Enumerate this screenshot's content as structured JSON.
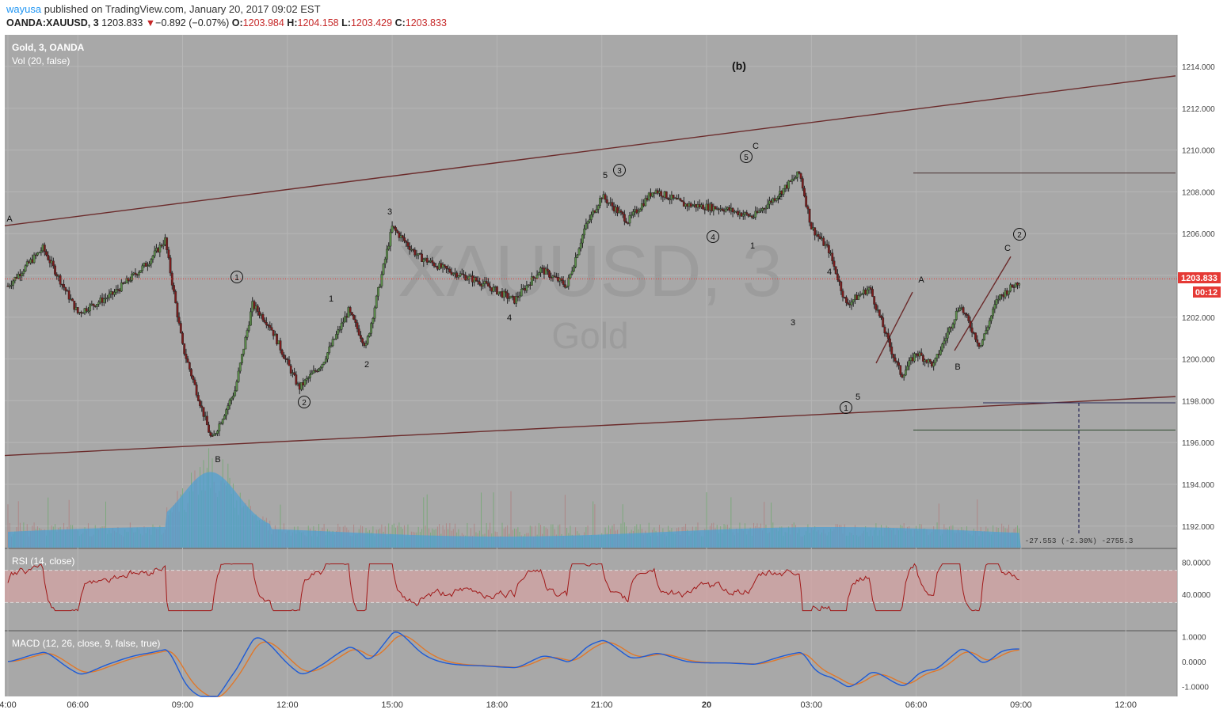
{
  "header": {
    "author": "wayusa",
    "published_text": "published on TradingView.com, January 20, 2017 09:02 EST",
    "symbol": "OANDA:XAUUSD, 3",
    "last": "1203.833",
    "change_arrow": "▼",
    "change": "−0.892 (−0.07%)",
    "open_label": "O:",
    "open": "1203.984",
    "high_label": "H:",
    "high": "1204.158",
    "low_label": "L:",
    "low": "1203.429",
    "close_label": "C:",
    "close": "1203.833"
  },
  "panes": {
    "price_title": "Gold, 3, OANDA",
    "vol_title": "Vol (20, false)",
    "rsi_title": "RSI (14, close)",
    "macd_title": "MACD (12, 26, close, 9, false, true)",
    "watermark_symbol": "XAUUSD, 3",
    "watermark_name": "Gold",
    "current_price_label": "1203.833",
    "countdown_label": "00:12",
    "measure_text": "-27.553 (-2.30%) -2755.3"
  },
  "colors": {
    "chart_bg": "#a8a8a8",
    "up_candle": "#5b8c4a",
    "down_candle": "#7a1c1c",
    "trendline": "#6b2b2b",
    "volume": "#4a9fd4",
    "rsi_line": "#a01818",
    "rsi_band": "#d6a3a3",
    "macd_line": "#1e5bd6",
    "signal_line": "#e0782a",
    "price_badge": "#e53935"
  },
  "annotations": {
    "wave_b_label": "(b)",
    "labels": [
      "A",
      "B",
      "1",
      "2",
      "3",
      "4",
      "5",
      "C",
      "1",
      "2",
      "3",
      "4",
      "5",
      "A",
      "B",
      "C",
      "3",
      "1",
      "2",
      "4",
      "5",
      "4",
      "1",
      "2",
      "3",
      "4",
      "5"
    ],
    "circled": [
      "1",
      "2",
      "3",
      "4",
      "5",
      "1",
      "2"
    ]
  },
  "chart_data": {
    "type": "candlestick",
    "instrument": "XAUUSD",
    "interval": "3",
    "ylim": [
      1191.0,
      1215.0
    ],
    "y_ticks": [
      "1214.000",
      "1212.000",
      "1210.000",
      "1208.000",
      "1206.000",
      "1204.000",
      "1202.000",
      "1200.000",
      "1198.000",
      "1196.000",
      "1194.000",
      "1192.000"
    ],
    "x_ticks": [
      "4:00",
      "06:00",
      "09:00",
      "12:00",
      "15:00",
      "18:00",
      "21:00",
      "20",
      "03:00",
      "06:00",
      "09:00",
      "12:00"
    ],
    "price_path": [
      {
        "t": "04:00",
        "price": 1203.5
      },
      {
        "t": "05:00",
        "price": 1205.3
      },
      {
        "t": "06:00",
        "price": 1202.2
      },
      {
        "t": "07:00",
        "price": 1203.1
      },
      {
        "t": "08:00",
        "price": 1204.6
      },
      {
        "t": "08:30",
        "price": 1205.7
      },
      {
        "t": "09:00",
        "price": 1200.6
      },
      {
        "t": "09:50",
        "price": 1196.1
      },
      {
        "t": "10:30",
        "price": 1198.5
      },
      {
        "t": "11:00",
        "price": 1202.6
      },
      {
        "t": "11:30",
        "price": 1201.6
      },
      {
        "t": "12:20",
        "price": 1198.6
      },
      {
        "t": "13:00",
        "price": 1199.8
      },
      {
        "t": "13:45",
        "price": 1202.3
      },
      {
        "t": "14:15",
        "price": 1200.6
      },
      {
        "t": "15:00",
        "price": 1206.3
      },
      {
        "t": "15:45",
        "price": 1204.9
      },
      {
        "t": "16:30",
        "price": 1204.3
      },
      {
        "t": "17:30",
        "price": 1203.7
      },
      {
        "t": "18:30",
        "price": 1202.8
      },
      {
        "t": "19:15",
        "price": 1204.3
      },
      {
        "t": "20:00",
        "price": 1203.5
      },
      {
        "t": "20:30",
        "price": 1206.2
      },
      {
        "t": "21:00",
        "price": 1207.8
      },
      {
        "t": "21:45",
        "price": 1206.6
      },
      {
        "t": "22:30",
        "price": 1208.1
      },
      {
        "t": "23:20",
        "price": 1207.4
      },
      {
        "t": "00:30",
        "price": 1207.2
      },
      {
        "t": "01:20",
        "price": 1206.8
      },
      {
        "t": "02:00",
        "price": 1207.8
      },
      {
        "t": "02:40",
        "price": 1208.9
      },
      {
        "t": "03:00",
        "price": 1206.3
      },
      {
        "t": "03:30",
        "price": 1205.2
      },
      {
        "t": "04:00",
        "price": 1202.6
      },
      {
        "t": "04:40",
        "price": 1203.4
      },
      {
        "t": "05:20",
        "price": 1200.2
      },
      {
        "t": "05:35",
        "price": 1199.2
      },
      {
        "t": "06:00",
        "price": 1200.3
      },
      {
        "t": "06:30",
        "price": 1199.7
      },
      {
        "t": "07:15",
        "price": 1202.6
      },
      {
        "t": "07:50",
        "price": 1200.6
      },
      {
        "t": "08:20",
        "price": 1202.9
      },
      {
        "t": "09:00",
        "price": 1203.8
      }
    ],
    "horizontal_levels": [
      1208.9,
      1197.9,
      1196.6
    ],
    "volume_ma_level": "low-medium, spike around 09:00-10:30",
    "rsi": {
      "levels": [
        70,
        30
      ],
      "tick_labels": [
        "80.0000",
        "40.0000"
      ],
      "last_approx": 56
    },
    "macd": {
      "tick_labels": [
        "1.0000",
        "0.0000",
        "-1.0000"
      ],
      "ylim": [
        -1.4,
        1.2
      ]
    }
  }
}
